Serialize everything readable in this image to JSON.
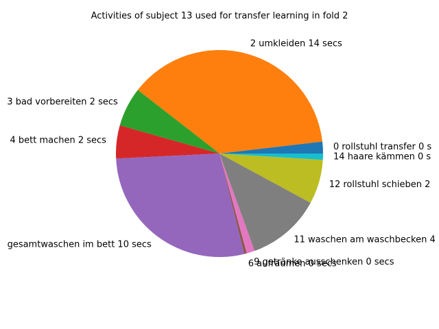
{
  "chart_data": {
    "type": "pie",
    "title": "Activities of subject 13 used for transfer learning in fold 2",
    "slices": [
      {
        "label": "0 rollstuhl transfer 0 s",
        "value": 1.9,
        "color": "#1f77b4"
      },
      {
        "label": "2 umkleiden 14 secs",
        "value": 38.6,
        "color": "#ff7f0e"
      },
      {
        "label": "3 bad vorbereiten 2 secs",
        "value": 6.3,
        "color": "#2ca02c"
      },
      {
        "label": "4 bett machen 2 secs",
        "value": 5.3,
        "color": "#d62728"
      },
      {
        "label": "gesamtwaschen im bett 10 secs",
        "value": 28.8,
        "color": "#9467bd"
      },
      {
        "label": "6 aufräumen 0 secs",
        "value": 0.4,
        "color": "#8c564b"
      },
      {
        "label": "9 getränke ausschenken 0 secs",
        "value": 1.3,
        "color": "#e377c2"
      },
      {
        "label": "11 waschen am waschbecken 4",
        "value": 11.9,
        "color": "#7f7f7f"
      },
      {
        "label": "12 rollstuhl schieben 2",
        "value": 7.1,
        "color": "#bcbd22"
      },
      {
        "label": "14 haare kämmen 0 s",
        "value": 1.0,
        "color": "#17becf"
      }
    ]
  }
}
